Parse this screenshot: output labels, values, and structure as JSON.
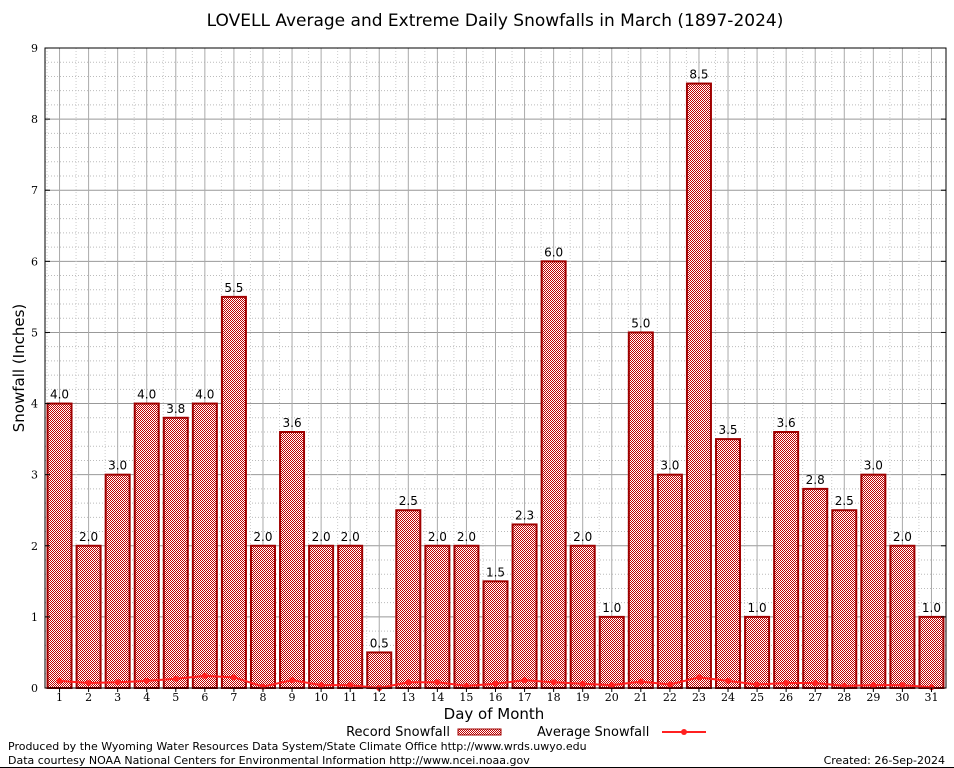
{
  "chart_data": {
    "type": "bar",
    "title": "LOVELL Average and Extreme Daily Snowfalls in March (1897-2024)",
    "xlabel": "Day of Month",
    "ylabel": "Snowfall (Inches)",
    "ylim": [
      0,
      9
    ],
    "yticks": [
      "0",
      "1",
      "2",
      "3",
      "4",
      "5",
      "6",
      "7",
      "8",
      "9"
    ],
    "grid": true,
    "legend_position": "bottom-center",
    "categories": [
      "1",
      "2",
      "3",
      "4",
      "5",
      "6",
      "7",
      "8",
      "9",
      "10",
      "11",
      "12",
      "13",
      "14",
      "15",
      "16",
      "17",
      "18",
      "19",
      "20",
      "21",
      "22",
      "23",
      "24",
      "25",
      "26",
      "27",
      "28",
      "29",
      "30",
      "31"
    ],
    "series": [
      {
        "name": "Record Snowfall",
        "type": "bar",
        "color": "#a00000",
        "values": [
          4.0,
          2.0,
          3.0,
          4.0,
          3.8,
          4.0,
          5.5,
          2.0,
          3.6,
          2.0,
          2.0,
          0.5,
          2.5,
          2.0,
          2.0,
          1.5,
          2.3,
          6.0,
          2.0,
          1.0,
          5.0,
          3.0,
          8.5,
          3.5,
          1.0,
          3.6,
          2.8,
          2.5,
          3.0,
          2.0,
          1.0
        ],
        "labels": [
          "4.0",
          "2.0",
          "3.0",
          "4.0",
          "3.8",
          "4.0",
          "5.5",
          "2.0",
          "3.6",
          "2.0",
          "2.0",
          "0.5",
          "2.5",
          "2.0",
          "2.0",
          "1.5",
          "2.3",
          "6.0",
          "2.0",
          "1.0",
          "5.0",
          "3.0",
          "8.5",
          "3.5",
          "1.0",
          "3.6",
          "2.8",
          "2.5",
          "3.0",
          "2.0",
          "1.0"
        ]
      },
      {
        "name": "Average Snowfall",
        "type": "line",
        "color": "#ff2020",
        "values": [
          0.1,
          0.07,
          0.08,
          0.1,
          0.13,
          0.17,
          0.15,
          0.02,
          0.11,
          0.04,
          0.04,
          0.0,
          0.08,
          0.08,
          0.03,
          0.06,
          0.11,
          0.08,
          0.06,
          0.04,
          0.09,
          0.05,
          0.15,
          0.1,
          0.05,
          0.07,
          0.07,
          0.03,
          0.04,
          0.04,
          0.01
        ]
      }
    ]
  },
  "footer": {
    "produced_by": "Produced by the Wyoming Water Resources Data System/State Climate Office http://www.wrds.uwyo.edu",
    "courtesy": "Data courtesy NOAA National Centers for Environmental Information http://www.ncei.noaa.gov",
    "created": "Created: 26-Sep-2024"
  }
}
